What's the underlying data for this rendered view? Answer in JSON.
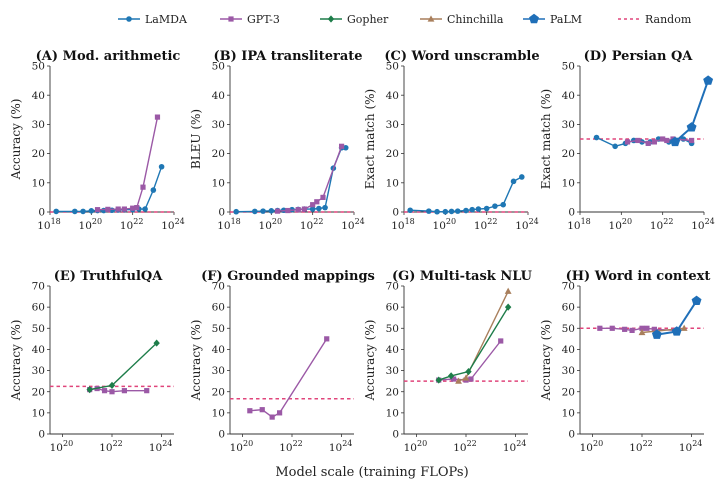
{
  "colors": {
    "LaMDA": "#1f77b4",
    "GPT-3": "#9b59a6",
    "Gopher": "#1e7d4a",
    "Chinchilla": "#a97f5c",
    "PaLM": "#1f6fb8",
    "Random": "#e0457b"
  },
  "legend": [
    {
      "name": "LaMDA",
      "marker": "circle"
    },
    {
      "name": "GPT-3",
      "marker": "square"
    },
    {
      "name": "Gopher",
      "marker": "diamond"
    },
    {
      "name": "Chinchilla",
      "marker": "triangle"
    },
    {
      "name": "PaLM",
      "marker": "pentagon"
    },
    {
      "name": "Random",
      "marker": "dashed-line"
    }
  ],
  "xlabel_common": "Model scale (training FLOPs)",
  "chart_data": [
    {
      "type": "line",
      "title": "(A) Mod. arithmetic",
      "ylabel": "Accuracy (%)",
      "xlog_range": [
        18,
        24
      ],
      "x_ticks": [
        18,
        20,
        22,
        24
      ],
      "ylim": [
        0,
        50
      ],
      "y_ticks": [
        0,
        10,
        20,
        30,
        40,
        50
      ],
      "random": 0,
      "series": [
        {
          "name": "LaMDA",
          "x_log10": [
            18.3,
            19.2,
            19.6,
            20.0,
            20.3,
            20.6,
            21.0,
            21.3,
            21.6,
            22.0,
            22.3,
            22.6,
            23.0,
            23.4
          ],
          "values": [
            0.2,
            0.2,
            0.2,
            0.4,
            0.5,
            0.5,
            0.6,
            0.7,
            0.8,
            0.8,
            1.0,
            1.0,
            7.5,
            15.5
          ]
        },
        {
          "name": "GPT-3",
          "x_log10": [
            20.3,
            20.8,
            21.3,
            21.6,
            22.0,
            22.2,
            22.5,
            23.2
          ],
          "values": [
            0.8,
            0.9,
            1.0,
            1.0,
            1.3,
            1.5,
            8.5,
            32.5
          ]
        }
      ]
    },
    {
      "type": "line",
      "title": "(B) IPA transliterate",
      "ylabel": "BLEU (%)",
      "xlog_range": [
        18,
        24
      ],
      "x_ticks": [
        18,
        20,
        22,
        24
      ],
      "ylim": [
        0,
        50
      ],
      "y_ticks": [
        0,
        10,
        20,
        30,
        40,
        50
      ],
      "random": 0,
      "series": [
        {
          "name": "LaMDA",
          "x_log10": [
            18.3,
            19.2,
            19.6,
            20.0,
            20.3,
            20.6,
            21.0,
            21.3,
            21.6,
            22.0,
            22.3,
            22.6,
            23.0,
            23.4,
            23.6
          ],
          "values": [
            0.1,
            0.2,
            0.3,
            0.4,
            0.5,
            0.6,
            0.8,
            0.9,
            1.0,
            1.0,
            1.2,
            1.5,
            15.0,
            22.0,
            22.0
          ]
        },
        {
          "name": "GPT-3",
          "x_log10": [
            20.3,
            20.8,
            21.3,
            21.6,
            22.0,
            22.2,
            22.5,
            23.4
          ],
          "values": [
            0.3,
            0.5,
            0.8,
            1.0,
            2.5,
            3.5,
            5.0,
            22.5
          ]
        }
      ]
    },
    {
      "type": "line",
      "title": "(C) Word unscramble",
      "ylabel": "Exact match (%)",
      "xlog_range": [
        18,
        24
      ],
      "x_ticks": [
        18,
        20,
        22,
        24
      ],
      "ylim": [
        0,
        50
      ],
      "y_ticks": [
        0,
        10,
        20,
        30,
        40,
        50
      ],
      "random": 0,
      "series": [
        {
          "name": "LaMDA",
          "x_log10": [
            18.3,
            19.2,
            19.6,
            20.0,
            20.3,
            20.6,
            21.0,
            21.3,
            21.6,
            22.0,
            22.4,
            22.8,
            23.3,
            23.7
          ],
          "values": [
            0.6,
            0.3,
            0.1,
            0.1,
            0.2,
            0.3,
            0.5,
            0.8,
            1.0,
            1.2,
            2.0,
            2.5,
            10.5,
            12.0
          ]
        }
      ]
    },
    {
      "type": "line",
      "title": "(D) Persian QA",
      "ylabel": "Exact match (%)",
      "xlog_range": [
        18,
        24
      ],
      "x_ticks": [
        18,
        20,
        22,
        24
      ],
      "ylim": [
        0,
        50
      ],
      "y_ticks": [
        0,
        10,
        20,
        30,
        40,
        50
      ],
      "random": 25,
      "series": [
        {
          "name": "LaMDA",
          "x_log10": [
            18.8,
            19.7,
            20.2,
            20.6,
            21.0,
            21.4,
            21.8,
            22.3,
            22.7,
            23.0,
            23.4
          ],
          "values": [
            25.5,
            22.5,
            23.5,
            24.5,
            24.0,
            24.0,
            25.0,
            24.0,
            24.5,
            25.0,
            23.5
          ]
        },
        {
          "name": "GPT-3",
          "x_log10": [
            20.3,
            20.8,
            21.3,
            21.6,
            22.0,
            22.2,
            22.5,
            23.4
          ],
          "values": [
            24.0,
            24.5,
            23.5,
            24.0,
            25.0,
            24.5,
            25.0,
            24.5
          ]
        },
        {
          "name": "PaLM",
          "x_log10": [
            22.6,
            23.4,
            24.2
          ],
          "values": [
            24.0,
            29.0,
            45.0
          ]
        }
      ]
    },
    {
      "type": "line",
      "title": "(E) TruthfulQA",
      "ylabel": "Accuracy (%)",
      "xlog_range": [
        19.5,
        24.5
      ],
      "x_ticks": [
        20,
        22,
        24
      ],
      "ylim": [
        0,
        70
      ],
      "y_ticks": [
        0,
        10,
        20,
        30,
        40,
        50,
        60,
        70
      ],
      "random": 22.5,
      "series": [
        {
          "name": "GPT-3",
          "x_log10": [
            21.1,
            21.4,
            21.7,
            22.0,
            22.5,
            23.4
          ],
          "values": [
            21.0,
            21.5,
            20.5,
            20.0,
            20.5,
            20.5
          ]
        },
        {
          "name": "Gopher",
          "x_log10": [
            21.1,
            22.0,
            23.8
          ],
          "values": [
            21.0,
            23.0,
            43.0
          ]
        }
      ]
    },
    {
      "type": "line",
      "title": "(F) Grounded mappings",
      "ylabel": "Accuracy (%)",
      "xlog_range": [
        19.5,
        24.5
      ],
      "x_ticks": [
        20,
        22,
        24
      ],
      "ylim": [
        0,
        70
      ],
      "y_ticks": [
        0,
        10,
        20,
        30,
        40,
        50,
        60,
        70
      ],
      "random": 16.7,
      "series": [
        {
          "name": "GPT-3",
          "x_log10": [
            20.3,
            20.8,
            21.2,
            21.5,
            23.4
          ],
          "values": [
            11.0,
            11.5,
            8.0,
            10.0,
            45.0
          ]
        }
      ]
    },
    {
      "type": "line",
      "title": "(G) Multi-task NLU",
      "ylabel": "Accuracy (%)",
      "xlog_range": [
        19.5,
        24.5
      ],
      "x_ticks": [
        20,
        22,
        24
      ],
      "ylim": [
        0,
        70
      ],
      "y_ticks": [
        0,
        10,
        20,
        30,
        40,
        50,
        60,
        70
      ],
      "random": 25,
      "series": [
        {
          "name": "GPT-3",
          "x_log10": [
            20.9,
            21.5,
            22.0,
            22.2,
            23.4
          ],
          "values": [
            25.5,
            26.0,
            25.5,
            26.0,
            44.0
          ]
        },
        {
          "name": "Chinchilla",
          "x_log10": [
            21.7,
            22.0,
            23.7
          ],
          "values": [
            25.0,
            26.5,
            67.5
          ]
        },
        {
          "name": "Gopher",
          "x_log10": [
            20.9,
            21.4,
            22.1,
            23.7
          ],
          "values": [
            25.5,
            27.5,
            29.5,
            60.0
          ]
        }
      ]
    },
    {
      "type": "line",
      "title": "(H) Word in context",
      "ylabel": "Accuracy (%)",
      "xlog_range": [
        19.5,
        24.5
      ],
      "x_ticks": [
        20,
        22,
        24
      ],
      "ylim": [
        0,
        70
      ],
      "y_ticks": [
        0,
        10,
        20,
        30,
        40,
        50,
        60,
        70
      ],
      "random": 50,
      "series": [
        {
          "name": "GPT-3",
          "x_log10": [
            20.3,
            20.8,
            21.3,
            21.6,
            22.0,
            22.2,
            22.5,
            23.4
          ],
          "values": [
            50.0,
            50.0,
            49.5,
            49.0,
            50.0,
            50.0,
            49.5,
            49.0
          ]
        },
        {
          "name": "Chinchilla",
          "x_log10": [
            22.0,
            23.7
          ],
          "values": [
            48.0,
            50.0
          ]
        },
        {
          "name": "PaLM",
          "x_log10": [
            22.6,
            23.4,
            24.2
          ],
          "values": [
            47.0,
            48.5,
            63.0
          ]
        }
      ]
    }
  ]
}
